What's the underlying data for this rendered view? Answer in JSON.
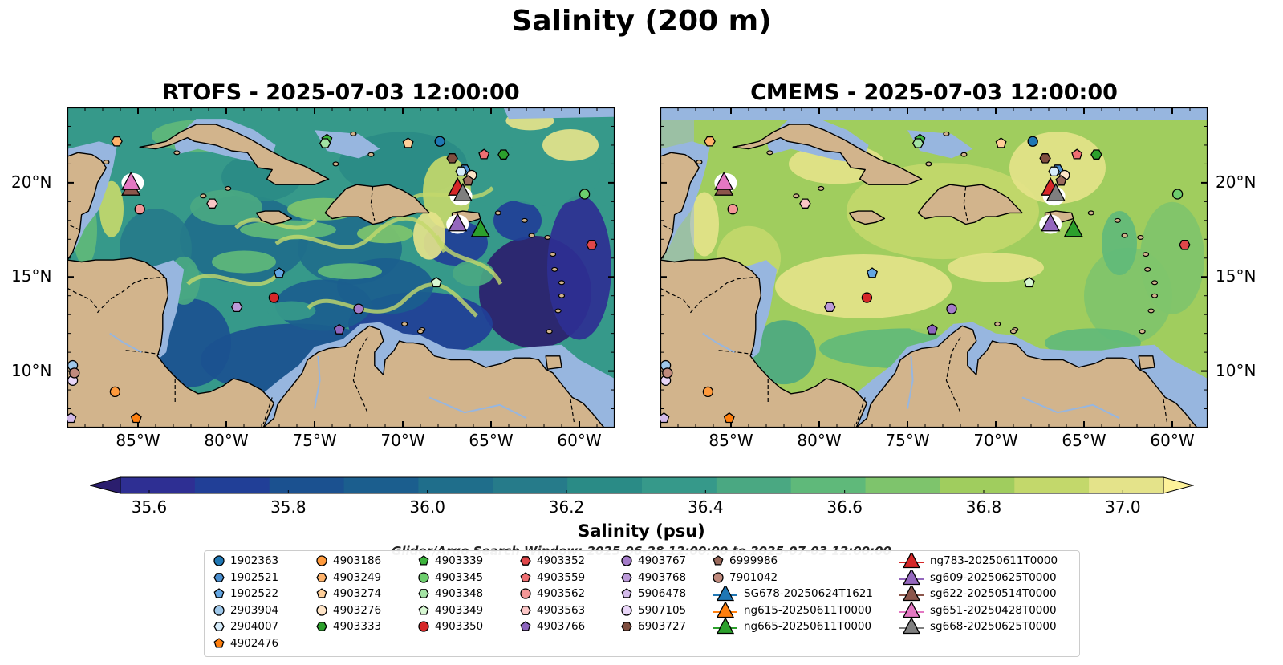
{
  "title": "Salinity (200 m)",
  "panels": [
    {
      "title": "RTOFS - 2025-07-03 12:00:00",
      "variant": "rtofs"
    },
    {
      "title": "CMEMS - 2025-07-03 12:00:00",
      "variant": "cmems"
    }
  ],
  "map_extent": {
    "lon": [
      -89,
      -58
    ],
    "lat": [
      7,
      24
    ]
  },
  "lat_ticks": [
    {
      "value": 20,
      "label": "20°N"
    },
    {
      "value": 15,
      "label": "15°N"
    },
    {
      "value": 10,
      "label": "10°N"
    }
  ],
  "lon_ticks": [
    {
      "value": -85,
      "label": "85°W"
    },
    {
      "value": -80,
      "label": "80°W"
    },
    {
      "value": -75,
      "label": "75°W"
    },
    {
      "value": -70,
      "label": "70°W"
    },
    {
      "value": -65,
      "label": "65°W"
    },
    {
      "value": -60,
      "label": "60°W"
    }
  ],
  "colorbar": {
    "label": "Salinity (psu)",
    "vmin": 35.5,
    "vmax": 37.05,
    "ticks": [
      {
        "value": 35.6,
        "label": "35.6"
      },
      {
        "value": 35.8,
        "label": "35.8"
      },
      {
        "value": 36.0,
        "label": "36.0"
      },
      {
        "value": 36.2,
        "label": "36.2"
      },
      {
        "value": 36.4,
        "label": "36.4"
      },
      {
        "value": 36.6,
        "label": "36.6"
      },
      {
        "value": 36.8,
        "label": "36.8"
      },
      {
        "value": 37.0,
        "label": "37.0"
      }
    ],
    "colors": [
      "#2b1e6e",
      "#2e2f93",
      "#213f97",
      "#1b5190",
      "#1b5e8e",
      "#1f6e8b",
      "#267b8a",
      "#2a8b86",
      "#36998a",
      "#4aa882",
      "#5fb97a",
      "#7ec46c",
      "#a0cd5e",
      "#c3d86b",
      "#e4e38a",
      "#fdf29a"
    ],
    "extend": "both"
  },
  "search_window": "Glider/Argo Search Window: 2025-06-28 12:00:00 to 2025-07-03 12:00:00",
  "colors": {
    "land": "#d2b48c",
    "shallow": "#97b6df",
    "no_data": "#97b6df"
  },
  "legend": [
    {
      "label": "1902363",
      "marker": "circle",
      "color": "#1f77b4"
    },
    {
      "label": "1902521",
      "marker": "hexagon",
      "color": "#4a8fd0"
    },
    {
      "label": "1902522",
      "marker": "pentagon",
      "color": "#63a6e3"
    },
    {
      "label": "2903904",
      "marker": "circle",
      "color": "#9fc8ea"
    },
    {
      "label": "2904007",
      "marker": "hexagon",
      "color": "#d6ecfb"
    },
    {
      "label": "4902476",
      "marker": "pentagon",
      "color": "#ff7f0e"
    },
    {
      "label": "4903186",
      "marker": "circle",
      "color": "#ff9a3c"
    },
    {
      "label": "4903249",
      "marker": "hexagon",
      "color": "#ffb36b"
    },
    {
      "label": "4903274",
      "marker": "pentagon",
      "color": "#ffcf99"
    },
    {
      "label": "4903276",
      "marker": "circle",
      "color": "#ffe5c8"
    },
    {
      "label": "4903333",
      "marker": "hexagon",
      "color": "#2ca02c"
    },
    {
      "label": "4903339",
      "marker": "pentagon",
      "color": "#3cb33c"
    },
    {
      "label": "4903345",
      "marker": "circle",
      "color": "#6dce6d"
    },
    {
      "label": "4903348",
      "marker": "hexagon",
      "color": "#a3e3a3"
    },
    {
      "label": "4903349",
      "marker": "pentagon",
      "color": "#d7f7d2"
    },
    {
      "label": "4903350",
      "marker": "circle",
      "color": "#d62728"
    },
    {
      "label": "4903352",
      "marker": "hexagon",
      "color": "#e0474a"
    },
    {
      "label": "4903559",
      "marker": "pentagon",
      "color": "#ee6f72"
    },
    {
      "label": "4903562",
      "marker": "circle",
      "color": "#f49797"
    },
    {
      "label": "4903563",
      "marker": "hexagon",
      "color": "#fbc6c6"
    },
    {
      "label": "4903766",
      "marker": "pentagon",
      "color": "#8c64bd"
    },
    {
      "label": "4903767",
      "marker": "circle",
      "color": "#a47cc9"
    },
    {
      "label": "4903768",
      "marker": "hexagon",
      "color": "#bc9ad9"
    },
    {
      "label": "5906478",
      "marker": "pentagon",
      "color": "#d3baea"
    },
    {
      "label": "5907105",
      "marker": "circle",
      "color": "#e9d6f8"
    },
    {
      "label": "6903727",
      "marker": "hexagon",
      "color": "#7f4e3f"
    },
    {
      "label": "6999986",
      "marker": "pentagon",
      "color": "#9a6a5c"
    },
    {
      "label": "7901042",
      "marker": "circle",
      "color": "#c08a7d"
    },
    {
      "label": "SG678-20250624T1621",
      "marker": "triangle",
      "color": "#1f77b4"
    },
    {
      "label": "ng615-20250611T0000",
      "marker": "triangle",
      "color": "#ff7f0e"
    },
    {
      "label": "ng665-20250611T0000",
      "marker": "triangle",
      "color": "#2ca02c"
    },
    {
      "label": "ng783-20250611T0000",
      "marker": "triangle",
      "color": "#d62728"
    },
    {
      "label": "sg609-20250625T0000",
      "marker": "triangle",
      "color": "#9467bd"
    },
    {
      "label": "sg622-20250514T0000",
      "marker": "triangle",
      "color": "#8c564b"
    },
    {
      "label": "sg651-20250428T0000",
      "marker": "triangle",
      "color": "#e377c2"
    },
    {
      "label": "sg668-20250625T0000",
      "marker": "triangle",
      "color": "#7f7f7f"
    }
  ],
  "floats": [
    {
      "id": "1902363",
      "lon": -67.9,
      "lat": 22.2
    },
    {
      "id": "1902521",
      "lon": -66.5,
      "lat": 20.7
    },
    {
      "id": "1902522",
      "lon": -77.0,
      "lat": 15.2
    },
    {
      "id": "2903904",
      "lon": -88.7,
      "lat": 10.3
    },
    {
      "id": "2904007",
      "lon": -66.7,
      "lat": 20.6
    },
    {
      "id": "4902476",
      "lon": -85.1,
      "lat": 7.5
    },
    {
      "id": "4903186",
      "lon": -86.3,
      "lat": 8.9
    },
    {
      "id": "4903249",
      "lon": -86.2,
      "lat": 22.2
    },
    {
      "id": "4903274",
      "lon": -69.7,
      "lat": 22.1
    },
    {
      "id": "4903276",
      "lon": -66.1,
      "lat": 20.4
    },
    {
      "id": "4903333",
      "lon": -64.3,
      "lat": 21.5
    },
    {
      "id": "4903339",
      "lon": -74.3,
      "lat": 22.3
    },
    {
      "id": "4903345",
      "lon": -59.7,
      "lat": 19.4
    },
    {
      "id": "4903348",
      "lon": -74.4,
      "lat": 22.1
    },
    {
      "id": "4903349",
      "lon": -68.1,
      "lat": 14.7
    },
    {
      "id": "4903350",
      "lon": -77.3,
      "lat": 13.9
    },
    {
      "id": "4903352",
      "lon": -59.3,
      "lat": 16.7
    },
    {
      "id": "4903559",
      "lon": -65.4,
      "lat": 21.5
    },
    {
      "id": "4903562",
      "lon": -84.9,
      "lat": 18.6
    },
    {
      "id": "4903563",
      "lon": -80.8,
      "lat": 18.9
    },
    {
      "id": "4903766",
      "lon": -73.6,
      "lat": 12.2
    },
    {
      "id": "4903767",
      "lon": -72.5,
      "lat": 13.3
    },
    {
      "id": "4903768",
      "lon": -79.4,
      "lat": 13.4
    },
    {
      "id": "5906478",
      "lon": -88.8,
      "lat": 7.5
    },
    {
      "id": "5907105",
      "lon": -88.7,
      "lat": 9.5
    },
    {
      "id": "6903727",
      "lon": -67.2,
      "lat": 21.3
    },
    {
      "id": "6999986",
      "lon": -66.3,
      "lat": 20.1
    },
    {
      "id": "7901042",
      "lon": -88.6,
      "lat": 9.9
    }
  ],
  "gliders": [
    {
      "id": "ng783-20250611T0000",
      "lon": -66.9,
      "lat": 19.7
    },
    {
      "id": "sg668-20250625T0000",
      "lon": -66.6,
      "lat": 19.4
    },
    {
      "id": "sg609-20250625T0000",
      "lon": -66.9,
      "lat": 17.8
    },
    {
      "id": "ng665-20250611T0000",
      "lon": -65.6,
      "lat": 17.5
    },
    {
      "id": "sg622-20250514T0000",
      "lon": -85.4,
      "lat": 19.7
    },
    {
      "id": "sg651-20250428T0000",
      "lon": -85.4,
      "lat": 20.0
    }
  ]
}
